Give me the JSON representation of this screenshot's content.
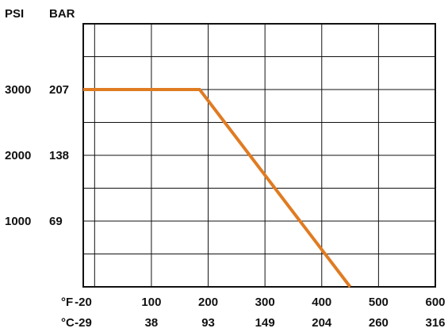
{
  "chart_data": {
    "type": "line",
    "y_headers": [
      "PSI",
      "BAR"
    ],
    "x_units": [
      "°F",
      "°C"
    ],
    "x_ticks_f": [
      "-20",
      "100",
      "200",
      "300",
      "400",
      "500",
      "600"
    ],
    "x_ticks_c": [
      "-29",
      "38",
      "93",
      "149",
      "204",
      "260",
      "316"
    ],
    "y_ticks_psi": [
      "3000",
      "2000",
      "1000"
    ],
    "y_ticks_bar": [
      "207",
      "138",
      "69"
    ],
    "x_range_f": [
      -20,
      600
    ],
    "y_range_psi": [
      0,
      4000
    ],
    "grid": true,
    "series": [
      {
        "color": "#e07b22",
        "x": [
          -20,
          185,
          450
        ],
        "y": [
          3000,
          3000,
          0
        ]
      }
    ]
  }
}
